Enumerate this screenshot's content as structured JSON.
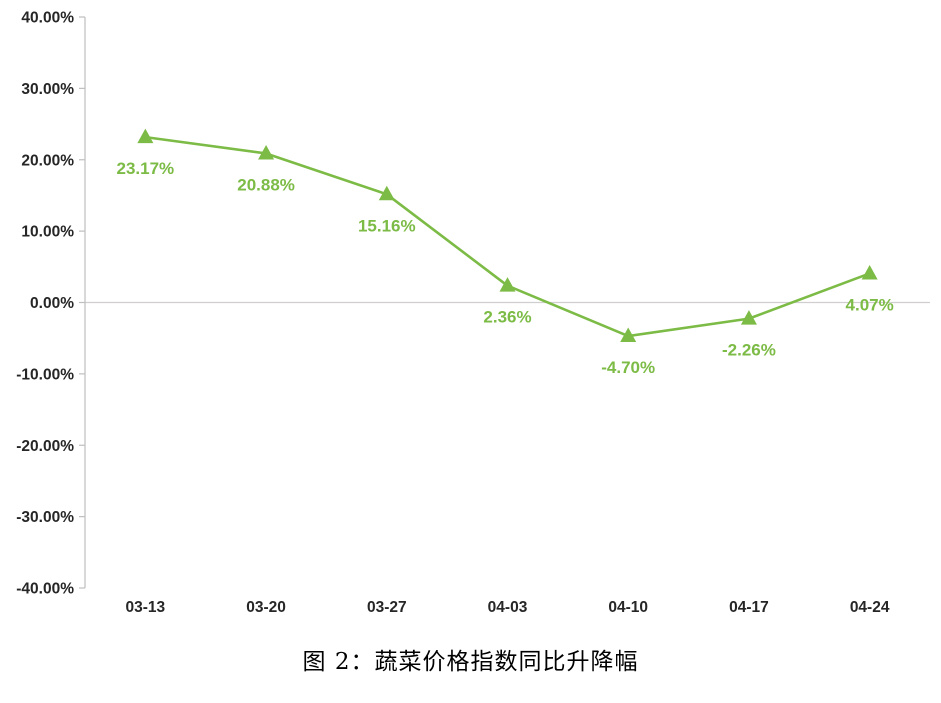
{
  "chart_data": {
    "type": "line",
    "title": "图 2：蔬菜价格指数同比升降幅",
    "categories": [
      "03-13",
      "03-20",
      "03-27",
      "04-03",
      "04-10",
      "04-17",
      "04-24"
    ],
    "values": [
      23.17,
      20.88,
      15.16,
      2.36,
      -4.7,
      -2.26,
      4.07
    ],
    "data_labels": [
      "23.17%",
      "20.88%",
      "15.16%",
      "2.36%",
      "-4.70%",
      "-2.26%",
      "4.07%"
    ],
    "ylim": [
      -40,
      40
    ],
    "ytick_step": 10,
    "ytick_labels": [
      "40.00%",
      "30.00%",
      "20.00%",
      "10.00%",
      "0.00%",
      "-10.00%",
      "-20.00%",
      "-30.00%",
      "-40.00%"
    ],
    "legend": "none",
    "grid": "zero-baseline-only",
    "marker": "triangle",
    "xlabel": "",
    "ylabel": "",
    "colors": {
      "line": "#7CBB45",
      "marker": "#7CBB45",
      "data_label": "#7CBB45",
      "axis": "#BFBFBF",
      "zero_line": "#D0CECE",
      "tick_label": "#262626",
      "title": "#000000",
      "background": "#FFFFFF"
    }
  }
}
